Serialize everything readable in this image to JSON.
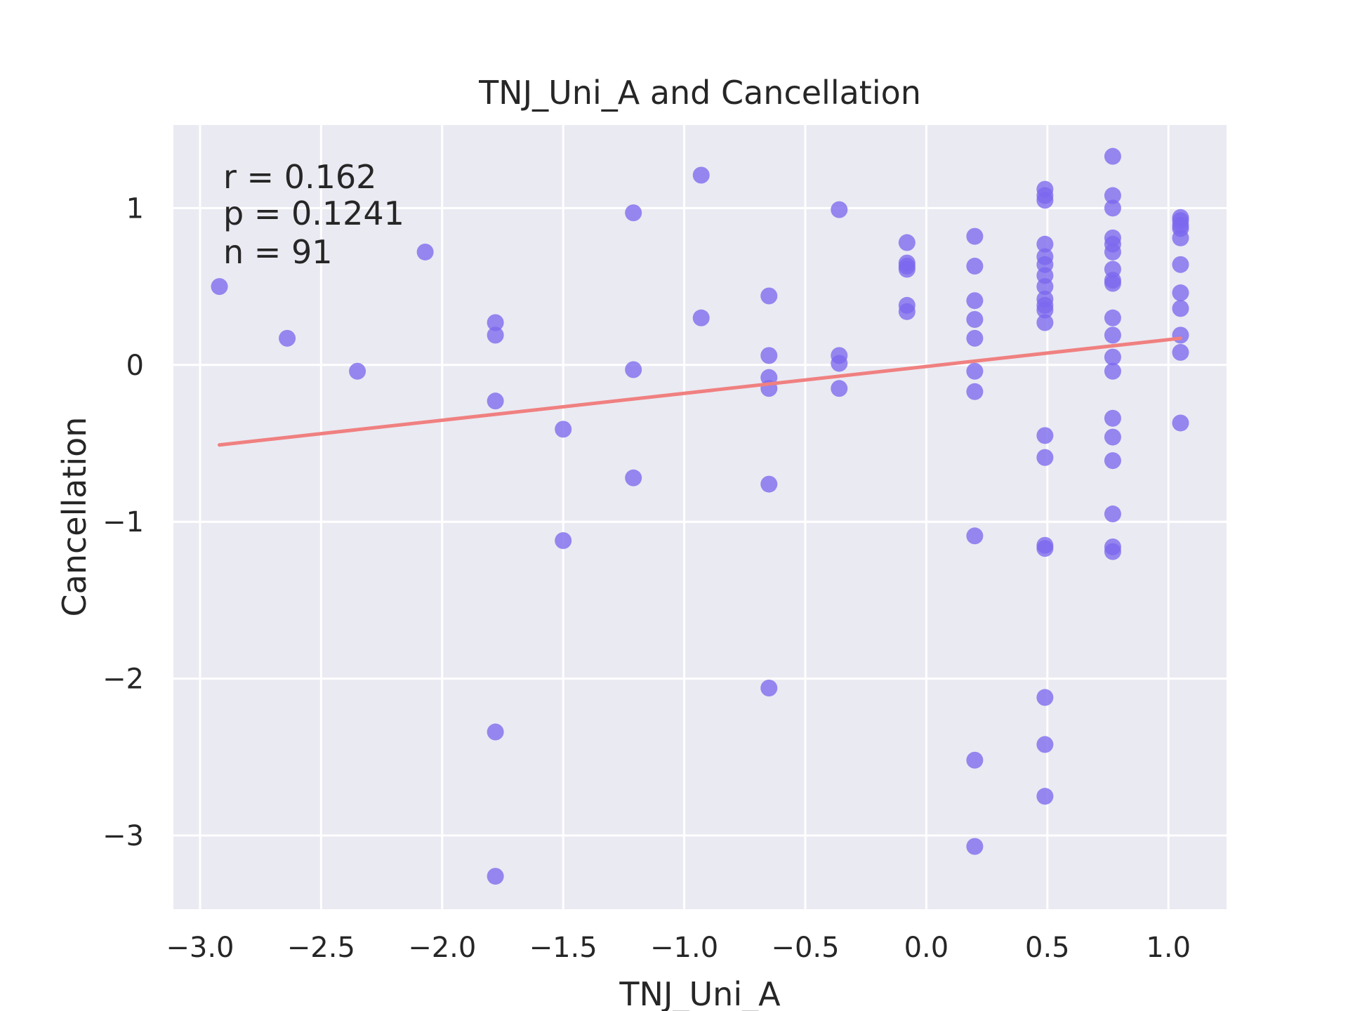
{
  "chart_data": {
    "type": "scatter",
    "title": "TNJ_Uni_A and Cancellation",
    "xlabel": "TNJ_Uni_A",
    "ylabel": "Cancellation",
    "xlim": [
      -3.11,
      1.24
    ],
    "ylim": [
      -3.47,
      1.53
    ],
    "x_ticks": [
      -3.0,
      -2.5,
      -2.0,
      -1.5,
      -1.0,
      -0.5,
      0.0,
      0.5,
      1.0
    ],
    "x_tick_labels": [
      "−3.0",
      "−2.5",
      "−2.0",
      "−1.5",
      "−1.0",
      "−0.5",
      "0.0",
      "0.5",
      "1.0"
    ],
    "y_ticks": [
      1,
      0,
      -1,
      -2,
      -3
    ],
    "y_tick_labels": [
      "1",
      "0",
      "−1",
      "−2",
      "−3"
    ],
    "grid": true,
    "stats": {
      "r": "r = 0.162",
      "p": "p = 0.1241",
      "n": "n = 91"
    },
    "point_color": "#7b68ee",
    "line_color": "#f08080",
    "background_color": "#eaeaf2",
    "regression": {
      "x": [
        -2.92,
        1.05
      ],
      "y": [
        -0.51,
        0.17
      ]
    },
    "points": [
      {
        "x": -2.92,
        "y": 0.5
      },
      {
        "x": -2.64,
        "y": 0.17
      },
      {
        "x": -2.35,
        "y": -0.04
      },
      {
        "x": -2.07,
        "y": 0.72
      },
      {
        "x": -1.78,
        "y": 0.27
      },
      {
        "x": -1.78,
        "y": 0.19
      },
      {
        "x": -1.78,
        "y": -0.23
      },
      {
        "x": -1.78,
        "y": -2.34
      },
      {
        "x": -1.78,
        "y": -3.26
      },
      {
        "x": -1.5,
        "y": -0.41
      },
      {
        "x": -1.5,
        "y": -1.12
      },
      {
        "x": -1.21,
        "y": 0.97
      },
      {
        "x": -1.21,
        "y": -0.03
      },
      {
        "x": -1.21,
        "y": -0.72
      },
      {
        "x": -0.93,
        "y": 1.21
      },
      {
        "x": -0.93,
        "y": 0.3
      },
      {
        "x": -0.65,
        "y": 0.44
      },
      {
        "x": -0.65,
        "y": 0.06
      },
      {
        "x": -0.65,
        "y": -0.08
      },
      {
        "x": -0.65,
        "y": -0.15
      },
      {
        "x": -0.65,
        "y": -0.76
      },
      {
        "x": -0.65,
        "y": -2.06
      },
      {
        "x": -0.36,
        "y": 0.99
      },
      {
        "x": -0.36,
        "y": 0.06
      },
      {
        "x": -0.36,
        "y": 0.01
      },
      {
        "x": -0.36,
        "y": -0.15
      },
      {
        "x": -0.08,
        "y": 0.78
      },
      {
        "x": -0.08,
        "y": 0.65
      },
      {
        "x": -0.08,
        "y": 0.63
      },
      {
        "x": -0.08,
        "y": 0.61
      },
      {
        "x": -0.08,
        "y": 0.38
      },
      {
        "x": -0.08,
        "y": 0.34
      },
      {
        "x": 0.2,
        "y": 0.82
      },
      {
        "x": 0.2,
        "y": 0.63
      },
      {
        "x": 0.2,
        "y": 0.41
      },
      {
        "x": 0.2,
        "y": 0.29
      },
      {
        "x": 0.2,
        "y": 0.17
      },
      {
        "x": 0.2,
        "y": -0.04
      },
      {
        "x": 0.2,
        "y": -0.17
      },
      {
        "x": 0.2,
        "y": -1.09
      },
      {
        "x": 0.2,
        "y": -2.52
      },
      {
        "x": 0.2,
        "y": -3.07
      },
      {
        "x": 0.49,
        "y": 1.12
      },
      {
        "x": 0.49,
        "y": 1.08
      },
      {
        "x": 0.49,
        "y": 1.05
      },
      {
        "x": 0.49,
        "y": 0.77
      },
      {
        "x": 0.49,
        "y": 0.69
      },
      {
        "x": 0.49,
        "y": 0.64
      },
      {
        "x": 0.49,
        "y": 0.57
      },
      {
        "x": 0.49,
        "y": 0.5
      },
      {
        "x": 0.49,
        "y": 0.42
      },
      {
        "x": 0.49,
        "y": 0.38
      },
      {
        "x": 0.49,
        "y": 0.35
      },
      {
        "x": 0.49,
        "y": 0.27
      },
      {
        "x": 0.49,
        "y": -0.45
      },
      {
        "x": 0.49,
        "y": -0.59
      },
      {
        "x": 0.49,
        "y": -1.15
      },
      {
        "x": 0.49,
        "y": -1.17
      },
      {
        "x": 0.49,
        "y": -2.12
      },
      {
        "x": 0.49,
        "y": -2.42
      },
      {
        "x": 0.49,
        "y": -2.75
      },
      {
        "x": 0.77,
        "y": 1.33
      },
      {
        "x": 0.77,
        "y": 1.08
      },
      {
        "x": 0.77,
        "y": 1.0
      },
      {
        "x": 0.77,
        "y": 0.81
      },
      {
        "x": 0.77,
        "y": 0.77
      },
      {
        "x": 0.77,
        "y": 0.72
      },
      {
        "x": 0.77,
        "y": 0.61
      },
      {
        "x": 0.77,
        "y": 0.54
      },
      {
        "x": 0.77,
        "y": 0.52
      },
      {
        "x": 0.77,
        "y": 0.3
      },
      {
        "x": 0.77,
        "y": 0.19
      },
      {
        "x": 0.77,
        "y": 0.05
      },
      {
        "x": 0.77,
        "y": -0.04
      },
      {
        "x": 0.77,
        "y": -0.34
      },
      {
        "x": 0.77,
        "y": -0.46
      },
      {
        "x": 0.77,
        "y": -0.61
      },
      {
        "x": 0.77,
        "y": -0.95
      },
      {
        "x": 0.77,
        "y": -1.16
      },
      {
        "x": 0.77,
        "y": -1.19
      },
      {
        "x": 1.05,
        "y": 0.94
      },
      {
        "x": 1.05,
        "y": 0.92
      },
      {
        "x": 1.05,
        "y": 0.89
      },
      {
        "x": 1.05,
        "y": 0.87
      },
      {
        "x": 1.05,
        "y": 0.81
      },
      {
        "x": 1.05,
        "y": 0.64
      },
      {
        "x": 1.05,
        "y": 0.46
      },
      {
        "x": 1.05,
        "y": 0.36
      },
      {
        "x": 1.05,
        "y": 0.19
      },
      {
        "x": 1.05,
        "y": 0.08
      },
      {
        "x": 1.05,
        "y": -0.37
      }
    ]
  }
}
